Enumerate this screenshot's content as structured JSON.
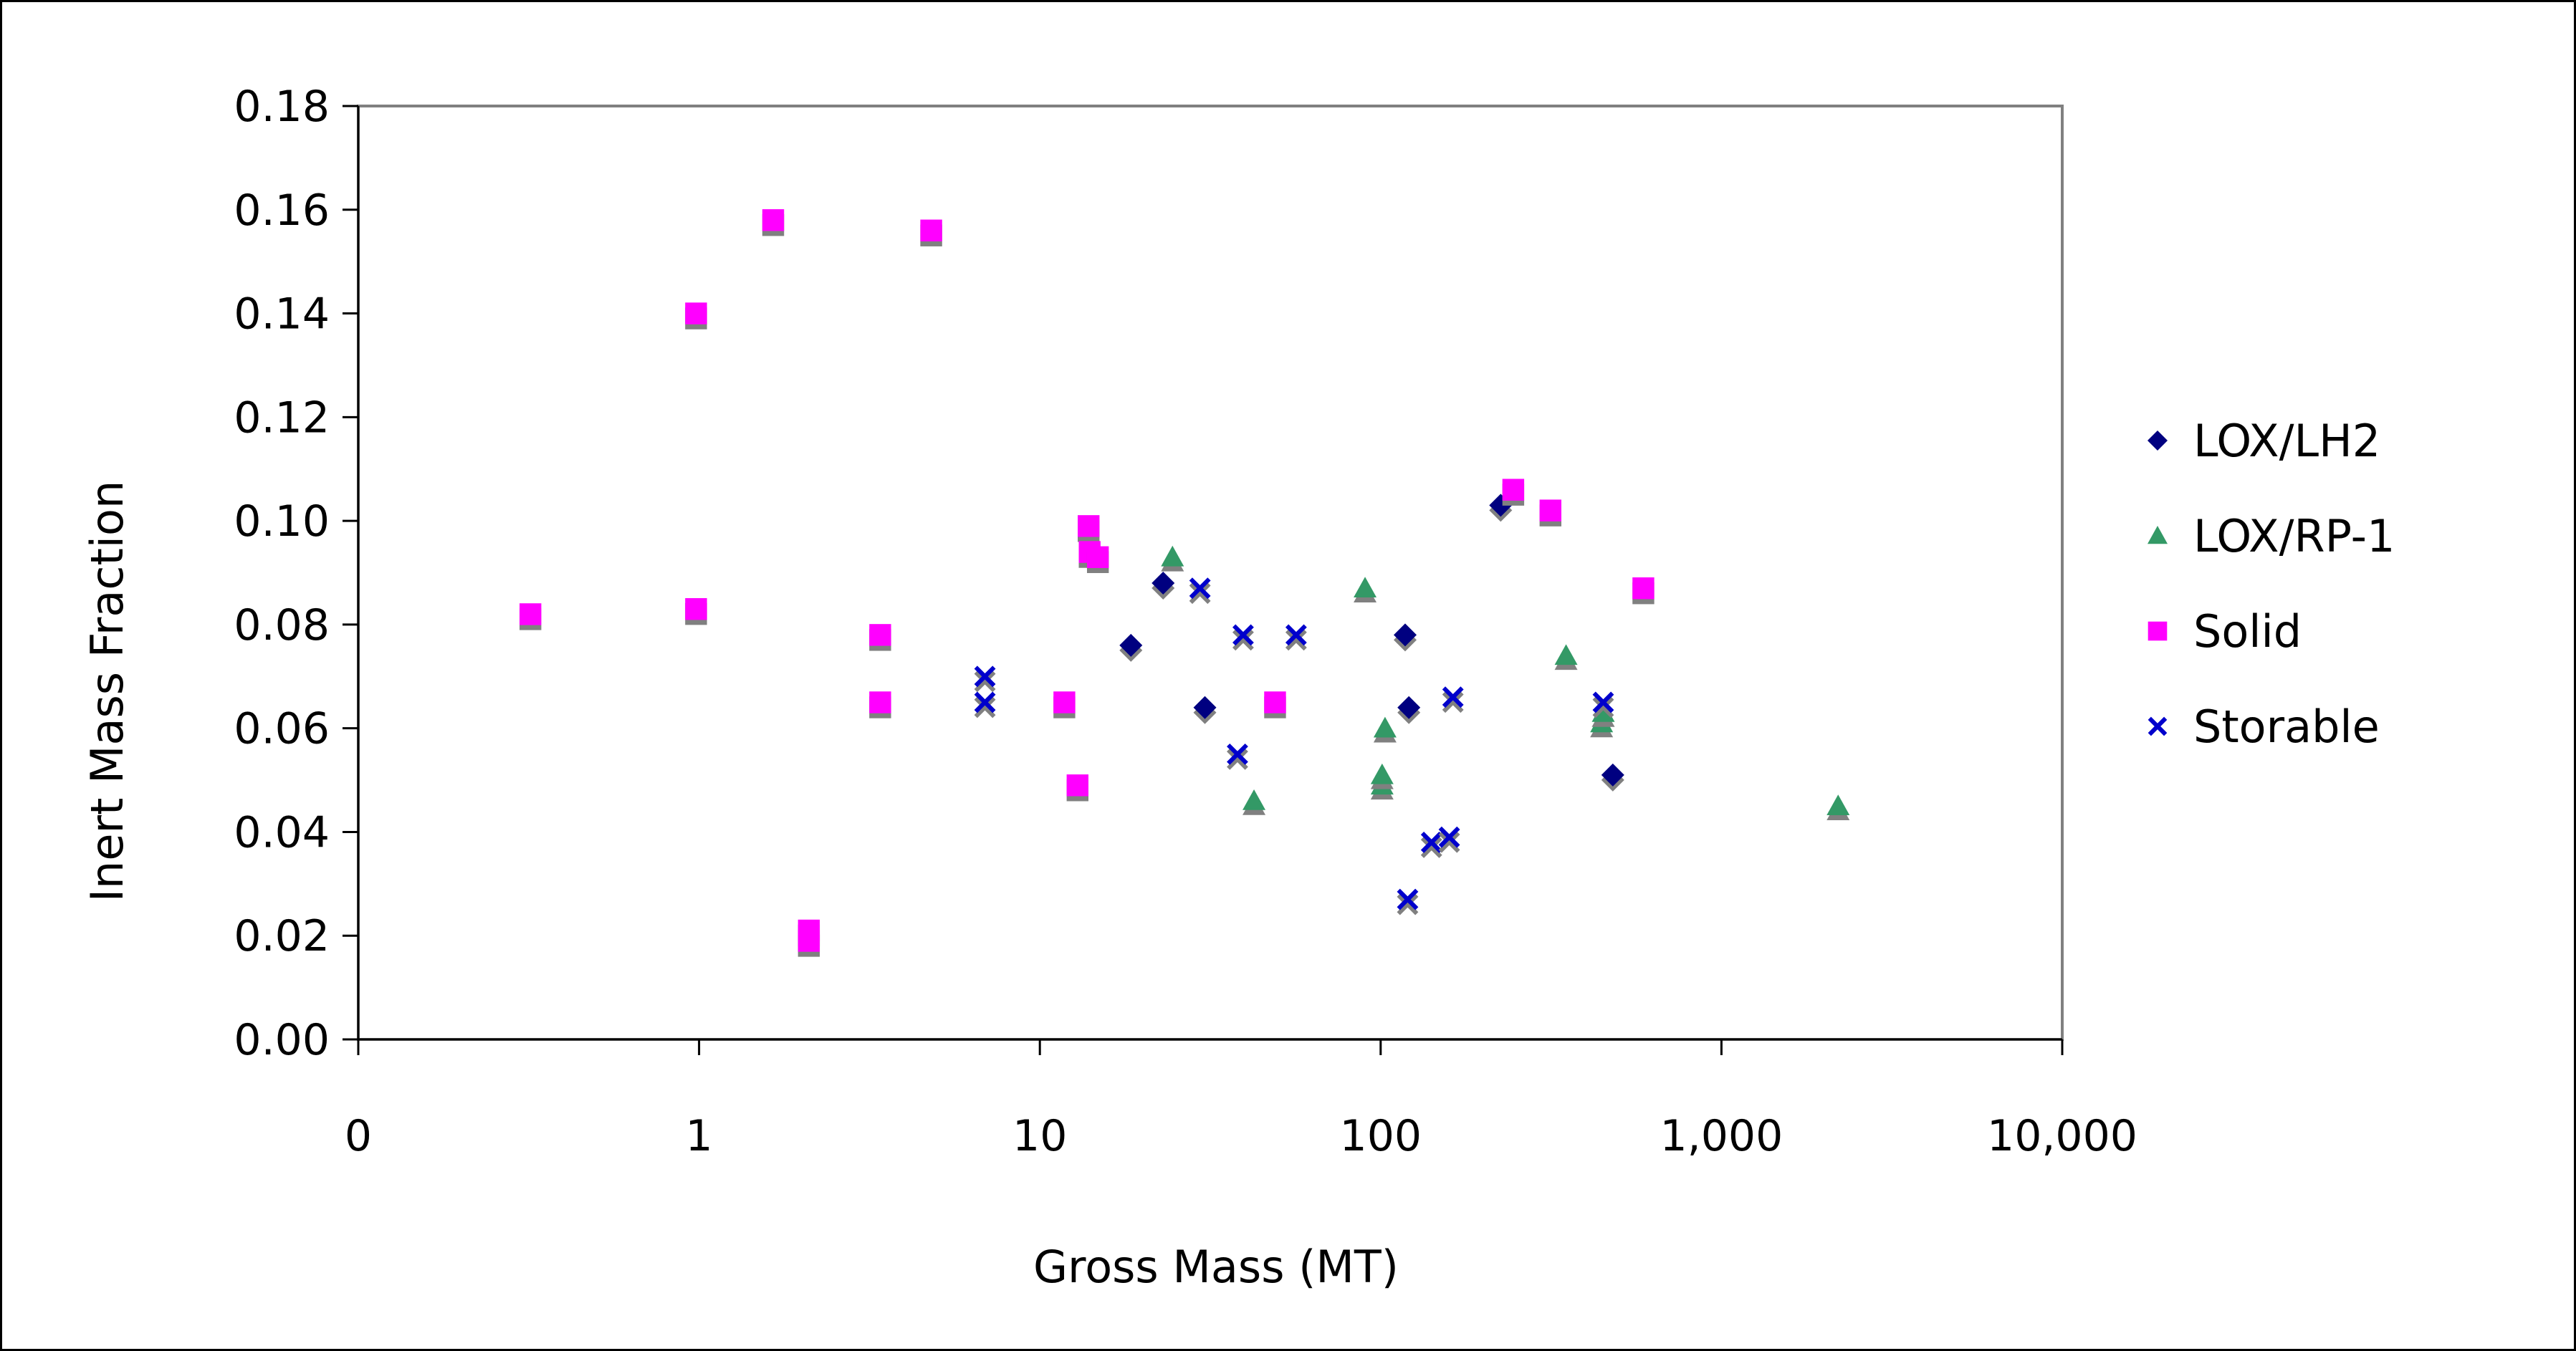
{
  "chart_data": {
    "type": "scatter",
    "title": "",
    "xlabel": "Gross Mass (MT)",
    "ylabel": "Inert Mass Fraction",
    "x_scale": "log",
    "xlim": [
      0.1,
      10000
    ],
    "ylim": [
      0,
      0.18
    ],
    "x_ticks": [
      {
        "value": 0.1,
        "label": "0"
      },
      {
        "value": 1,
        "label": "1"
      },
      {
        "value": 10,
        "label": "10"
      },
      {
        "value": 100,
        "label": "100"
      },
      {
        "value": 1000,
        "label": "1,000"
      },
      {
        "value": 10000,
        "label": "10,000"
      }
    ],
    "y_ticks": [
      {
        "value": 0,
        "label": "0.00"
      },
      {
        "value": 0.02,
        "label": "0.02"
      },
      {
        "value": 0.04,
        "label": "0.04"
      },
      {
        "value": 0.06,
        "label": "0.06"
      },
      {
        "value": 0.08,
        "label": "0.08"
      },
      {
        "value": 0.1,
        "label": "0.10"
      },
      {
        "value": 0.12,
        "label": "0.12"
      },
      {
        "value": 0.14,
        "label": "0.14"
      },
      {
        "value": 0.16,
        "label": "0.16"
      },
      {
        "value": 0.18,
        "label": "0.18"
      }
    ],
    "grid": false,
    "legend_position": "right",
    "plot_border_color": "#808080",
    "shadow_color": "#808080",
    "series": [
      {
        "name": "LOX/LH2",
        "marker": "diamond",
        "color": "#000080",
        "points": [
          {
            "x": 18.5,
            "y": 0.076
          },
          {
            "x": 23.0,
            "y": 0.088
          },
          {
            "x": 30.5,
            "y": 0.064
          },
          {
            "x": 118,
            "y": 0.078
          },
          {
            "x": 121,
            "y": 0.064
          },
          {
            "x": 225,
            "y": 0.103
          },
          {
            "x": 480,
            "y": 0.051
          }
        ]
      },
      {
        "name": "LOX/RP-1",
        "marker": "triangle",
        "color": "#339966",
        "points": [
          {
            "x": 24.5,
            "y": 0.093
          },
          {
            "x": 42.5,
            "y": 0.046
          },
          {
            "x": 90,
            "y": 0.087
          },
          {
            "x": 101,
            "y": 0.049
          },
          {
            "x": 101,
            "y": 0.051
          },
          {
            "x": 103,
            "y": 0.06
          },
          {
            "x": 350,
            "y": 0.074
          },
          {
            "x": 445,
            "y": 0.061
          },
          {
            "x": 450,
            "y": 0.063
          },
          {
            "x": 2200,
            "y": 0.045
          }
        ]
      },
      {
        "name": "Solid",
        "marker": "square",
        "color": "#FF00FF",
        "points": [
          {
            "x": 0.32,
            "y": 0.082
          },
          {
            "x": 0.98,
            "y": 0.14
          },
          {
            "x": 0.98,
            "y": 0.083
          },
          {
            "x": 1.65,
            "y": 0.158
          },
          {
            "x": 2.1,
            "y": 0.021
          },
          {
            "x": 2.1,
            "y": 0.019
          },
          {
            "x": 3.4,
            "y": 0.078
          },
          {
            "x": 3.4,
            "y": 0.065
          },
          {
            "x": 4.8,
            "y": 0.156
          },
          {
            "x": 11.8,
            "y": 0.065
          },
          {
            "x": 12.9,
            "y": 0.049
          },
          {
            "x": 13.9,
            "y": 0.099
          },
          {
            "x": 14.0,
            "y": 0.094
          },
          {
            "x": 14.8,
            "y": 0.093
          },
          {
            "x": 49,
            "y": 0.065
          },
          {
            "x": 245,
            "y": 0.106
          },
          {
            "x": 315,
            "y": 0.102
          },
          {
            "x": 590,
            "y": 0.087
          }
        ]
      },
      {
        "name": "Storable",
        "marker": "x",
        "color": "#0000CC",
        "points": [
          {
            "x": 6.9,
            "y": 0.07
          },
          {
            "x": 6.9,
            "y": 0.065
          },
          {
            "x": 29.5,
            "y": 0.087
          },
          {
            "x": 38.0,
            "y": 0.055
          },
          {
            "x": 39.5,
            "y": 0.078
          },
          {
            "x": 56.5,
            "y": 0.078
          },
          {
            "x": 120,
            "y": 0.027
          },
          {
            "x": 141,
            "y": 0.038
          },
          {
            "x": 159,
            "y": 0.039
          },
          {
            "x": 163,
            "y": 0.066
          },
          {
            "x": 450,
            "y": 0.065
          }
        ]
      }
    ]
  }
}
